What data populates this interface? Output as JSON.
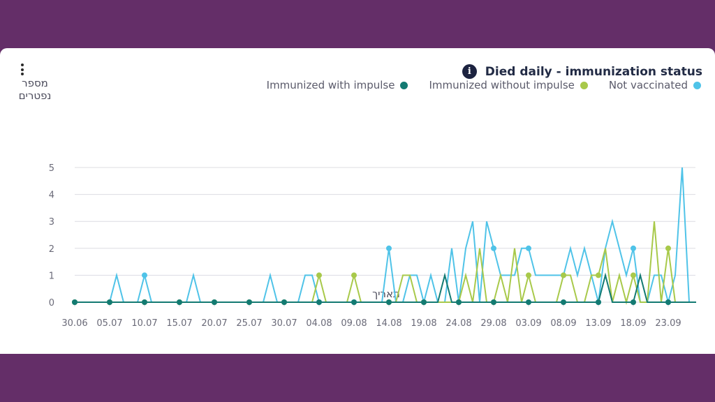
{
  "card": {
    "title": "Died daily - immunization status",
    "info_icon": "info-icon",
    "menu_icon": "more-vertical-icon"
  },
  "chart_data": {
    "type": "line",
    "title": "Died daily - immunization status",
    "ylabel": "מספר נפטרים",
    "xlabel": "תאריך",
    "ylim": [
      0,
      5
    ],
    "yticks": [
      0,
      1,
      2,
      3,
      4,
      5
    ],
    "grid": true,
    "legend_position": "top-right",
    "xtick_labels": [
      "30.06",
      "05.07",
      "10.07",
      "15.07",
      "20.07",
      "25.07",
      "30.07",
      "04.08",
      "09.08",
      "14.08",
      "19.08",
      "24.08",
      "29.08",
      "03.09",
      "08.09",
      "13.09",
      "18.09",
      "23.09"
    ],
    "x_start": "30.06",
    "points_per_day": 1,
    "legend": [
      {
        "name": "Not vaccinated",
        "color": "#4fc3e8"
      },
      {
        "name": "Immunized without impulse",
        "color": "#a8c94a"
      },
      {
        "name": "Immunized with impulse",
        "color": "#137a72"
      }
    ],
    "series": [
      {
        "name": "Not vaccinated",
        "color": "#4fc3e8",
        "values": [
          0,
          0,
          0,
          0,
          0,
          0,
          1,
          0,
          0,
          0,
          1,
          0,
          0,
          0,
          0,
          0,
          0,
          1,
          0,
          0,
          0,
          0,
          0,
          0,
          0,
          0,
          0,
          0,
          1,
          0,
          0,
          0,
          0,
          1,
          1,
          0,
          0,
          0,
          0,
          0,
          0,
          0,
          0,
          0,
          0,
          2,
          0,
          0,
          1,
          1,
          0,
          1,
          0,
          0,
          2,
          0,
          2,
          3,
          0,
          3,
          2,
          1,
          1,
          1,
          2,
          2,
          1,
          1,
          1,
          1,
          1,
          2,
          1,
          2,
          1,
          0,
          2,
          3,
          2,
          1,
          2,
          0,
          0,
          1,
          1,
          0,
          1,
          5,
          0,
          0
        ]
      },
      {
        "name": "Immunized without impulse",
        "color": "#a8c94a",
        "values": [
          0,
          0,
          0,
          0,
          0,
          0,
          0,
          0,
          0,
          0,
          0,
          0,
          0,
          0,
          0,
          0,
          0,
          0,
          0,
          0,
          0,
          0,
          0,
          0,
          0,
          0,
          0,
          0,
          0,
          0,
          0,
          0,
          0,
          0,
          0,
          1,
          0,
          0,
          0,
          0,
          1,
          0,
          0,
          0,
          0,
          0,
          0,
          1,
          1,
          0,
          0,
          0,
          0,
          0,
          0,
          0,
          1,
          0,
          2,
          0,
          0,
          1,
          0,
          2,
          0,
          1,
          0,
          0,
          0,
          0,
          1,
          1,
          0,
          0,
          1,
          1,
          2,
          0,
          1,
          0,
          1,
          0,
          0,
          3,
          0,
          2,
          0,
          0,
          0,
          0
        ]
      },
      {
        "name": "Immunized with impulse",
        "color": "#137a72",
        "values": [
          0,
          0,
          0,
          0,
          0,
          0,
          0,
          0,
          0,
          0,
          0,
          0,
          0,
          0,
          0,
          0,
          0,
          0,
          0,
          0,
          0,
          0,
          0,
          0,
          0,
          0,
          0,
          0,
          0,
          0,
          0,
          0,
          0,
          0,
          0,
          0,
          0,
          0,
          0,
          0,
          0,
          0,
          0,
          0,
          0,
          0,
          0,
          0,
          0,
          0,
          0,
          0,
          0,
          1,
          0,
          0,
          0,
          0,
          0,
          0,
          0,
          0,
          0,
          0,
          0,
          0,
          0,
          0,
          0,
          0,
          0,
          0,
          0,
          0,
          0,
          0,
          1,
          0,
          0,
          0,
          0,
          1,
          0,
          0,
          0,
          0,
          0,
          0,
          0,
          0
        ]
      }
    ]
  }
}
